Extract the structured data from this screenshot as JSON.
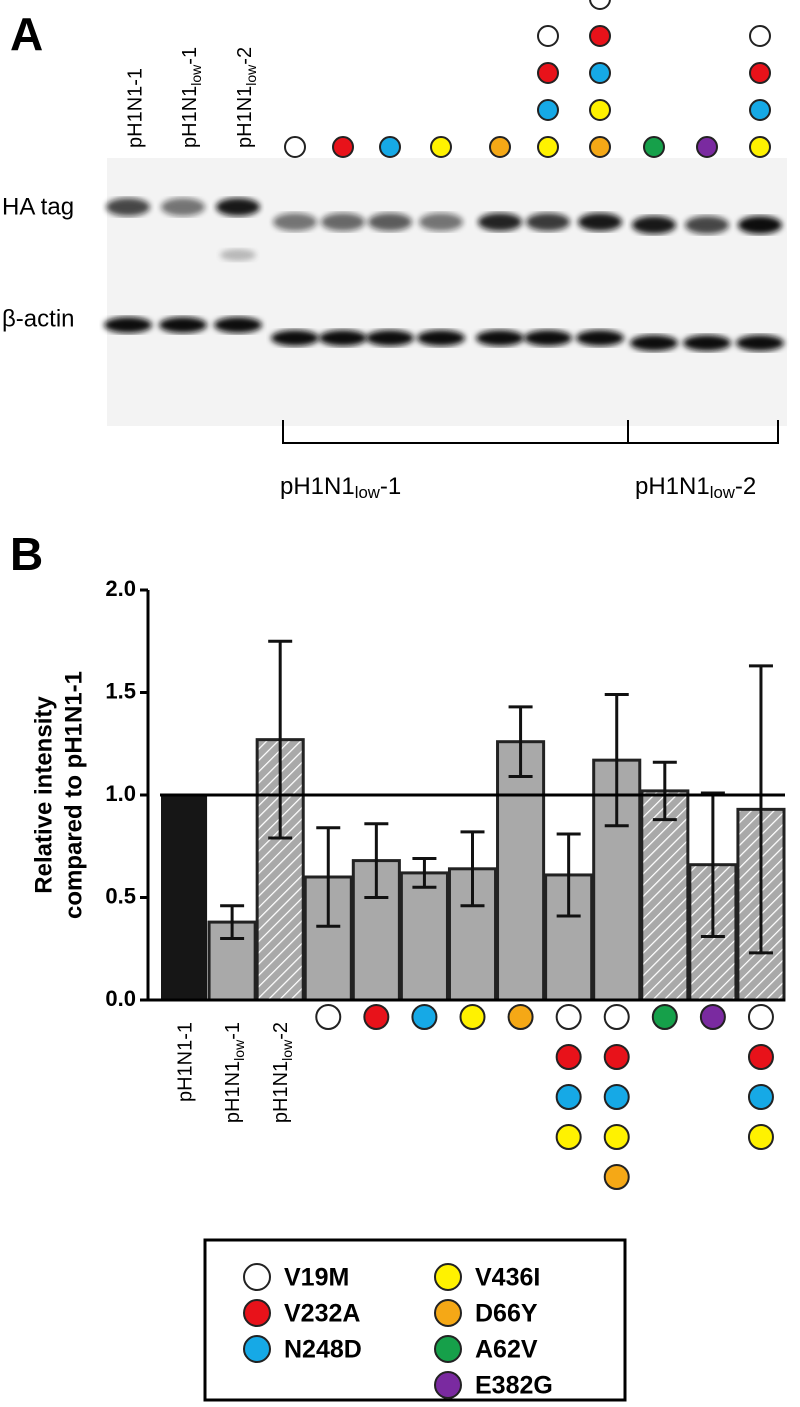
{
  "panel_a": {
    "panel_label": "A",
    "row_labels": [
      "HA tag",
      "β-actin"
    ],
    "lane_labels": [
      "pH1N1-1",
      "pH1N1low-1",
      "pH1N1low-2"
    ],
    "group_labels": [
      "pH1N1low-1",
      "pH1N1low-2"
    ]
  },
  "chart_data": {
    "type": "bar",
    "panel_label": "B",
    "ylabel": [
      "Relative intensity",
      "compared to pH1N1-1"
    ],
    "categories": [
      "pH1N1-1",
      "pH1N1low-1",
      "pH1N1low-2",
      null,
      null,
      null,
      null,
      null,
      null,
      null,
      null,
      null,
      null
    ],
    "values": [
      1.0,
      0.38,
      1.27,
      0.6,
      0.68,
      0.62,
      0.64,
      1.26,
      0.61,
      1.17,
      1.02,
      0.66,
      0.93
    ],
    "errors": [
      null,
      0.08,
      0.48,
      0.24,
      0.18,
      0.07,
      0.18,
      0.17,
      0.2,
      0.32,
      0.14,
      0.35,
      0.7
    ],
    "colors": [
      "#161616",
      "#a9a9a9",
      "#a9a9a9",
      "#a9a9a9",
      "#a9a9a9",
      "#a9a9a9",
      "#a9a9a9",
      "#a9a9a9",
      "#a9a9a9",
      "#a9a9a9",
      "#a9a9a9",
      "#a9a9a9",
      "#a9a9a9"
    ],
    "hatched": [
      false,
      false,
      true,
      false,
      false,
      false,
      false,
      false,
      false,
      false,
      true,
      true,
      true
    ],
    "ylim": [
      0,
      2
    ],
    "yticks": [
      {
        "value": 0,
        "label": "0.0"
      },
      {
        "value": 0.5,
        "label": "0.5"
      },
      {
        "value": 1,
        "label": "1.0"
      },
      {
        "value": 1.5,
        "label": "1.5"
      },
      {
        "value": 2,
        "label": "2.0"
      }
    ],
    "reference_line": 1,
    "legend": [
      {
        "name": "V19M",
        "color": "#ffffff"
      },
      {
        "name": "V232A",
        "color": "#e8121a"
      },
      {
        "name": "N248D",
        "color": "#16a9e6"
      },
      {
        "name": "V436I",
        "color": "#fff200"
      },
      {
        "name": "D66Y",
        "color": "#f5a816"
      },
      {
        "name": "A62V",
        "color": "#16a04a"
      },
      {
        "name": "E382G",
        "color": "#7a2aa0"
      }
    ]
  }
}
